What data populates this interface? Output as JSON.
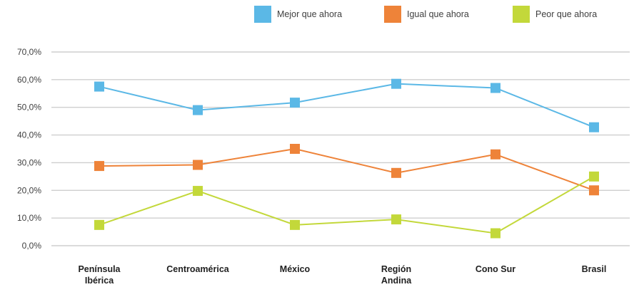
{
  "chart_data": {
    "type": "line",
    "categories": [
      [
        "Península",
        "Ibérica"
      ],
      [
        "Centroamérica"
      ],
      [
        "México"
      ],
      [
        "Región",
        "Andina"
      ],
      [
        "Cono Sur"
      ],
      [
        "Brasil"
      ]
    ],
    "y_ticks": [
      "0,0%",
      "10,0%",
      "20,0%",
      "30,0%",
      "40,0%",
      "50,0%",
      "60,0%",
      "70,0%"
    ],
    "ylim": [
      0,
      70
    ],
    "grid": true,
    "legend_position": "top-right",
    "series": [
      {
        "name": "Mejor que ahora",
        "color": "#5bb8e6",
        "values": [
          57.5,
          49.0,
          51.7,
          58.5,
          57.0,
          42.8
        ]
      },
      {
        "name": "Igual que ahora",
        "color": "#ee8339",
        "values": [
          28.8,
          29.2,
          35.0,
          26.3,
          33.0,
          20.0
        ]
      },
      {
        "name": "Peor que ahora",
        "color": "#c3d83a",
        "values": [
          7.5,
          19.8,
          7.5,
          9.5,
          4.5,
          25.0
        ]
      }
    ]
  }
}
